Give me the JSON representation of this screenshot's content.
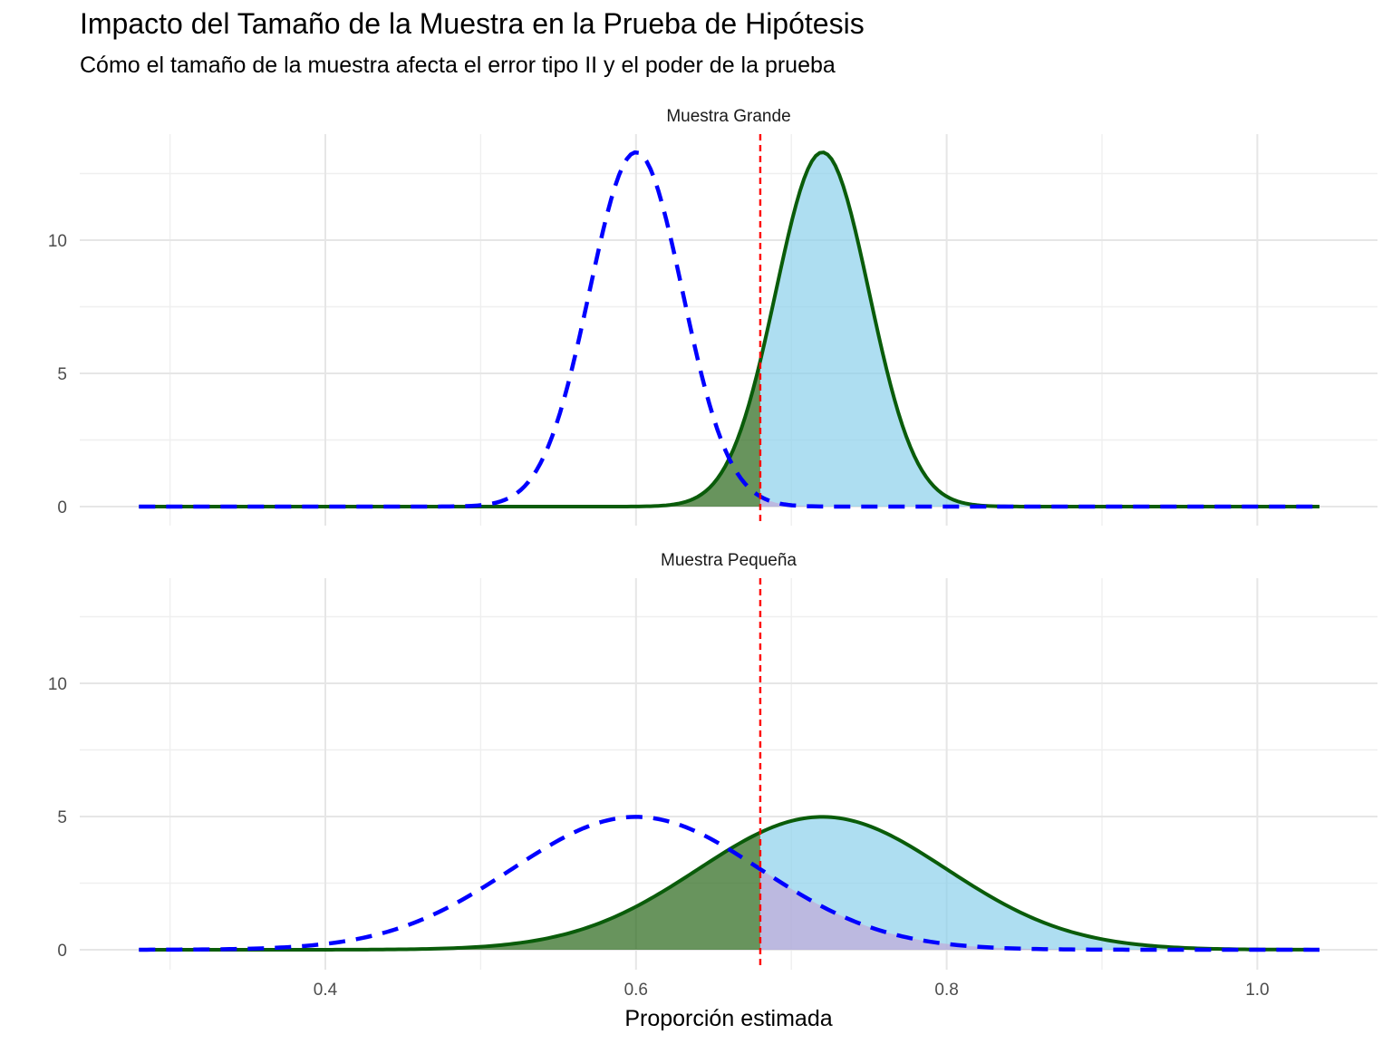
{
  "title": "Impacto del Tamaño de la Muestra en la Prueba de Hipótesis",
  "subtitle": "Cómo el tamaño de la muestra afecta el error tipo II y el poder de la prueba",
  "colors": {
    "null_curve": "#0000ff",
    "alt_curve": "#0a5c0a",
    "critical_line": "#ff0000",
    "power_fill": "#87ceeb",
    "type2_fill": "#2e6b1e",
    "alpha_fill": "#c89bd2"
  },
  "chart_data": [
    {
      "type": "area",
      "panel": "Muestra Grande",
      "xlabel": "",
      "ylabel": "",
      "xlim": [
        0.28,
        1.04
      ],
      "ylim": [
        0,
        13.4
      ],
      "x_ticks": [
        "0.4",
        "0.6",
        "0.8",
        "1.0"
      ],
      "y_ticks": [
        "0",
        "5",
        "10"
      ],
      "critical_value": 0.68,
      "series": [
        {
          "line": "dashed",
          "color": "blue",
          "mean": 0.6,
          "sd": 0.03,
          "peak_density": 13.3
        },
        {
          "line": "solid",
          "color": "darkgreen",
          "mean": 0.72,
          "sd": 0.03,
          "peak_density": 13.3
        }
      ]
    },
    {
      "type": "area",
      "panel": "Muestra Pequeña",
      "xlabel": "Proporción estimada",
      "ylabel": "",
      "xlim": [
        0.28,
        1.04
      ],
      "ylim": [
        0,
        13.4
      ],
      "x_ticks": [
        "0.4",
        "0.6",
        "0.8",
        "1.0"
      ],
      "y_ticks": [
        "0",
        "5",
        "10"
      ],
      "critical_value": 0.68,
      "series": [
        {
          "line": "dashed",
          "color": "blue",
          "mean": 0.6,
          "sd": 0.08,
          "peak_density": 5.0
        },
        {
          "line": "solid",
          "color": "darkgreen",
          "mean": 0.72,
          "sd": 0.08,
          "peak_density": 5.0
        }
      ]
    }
  ]
}
